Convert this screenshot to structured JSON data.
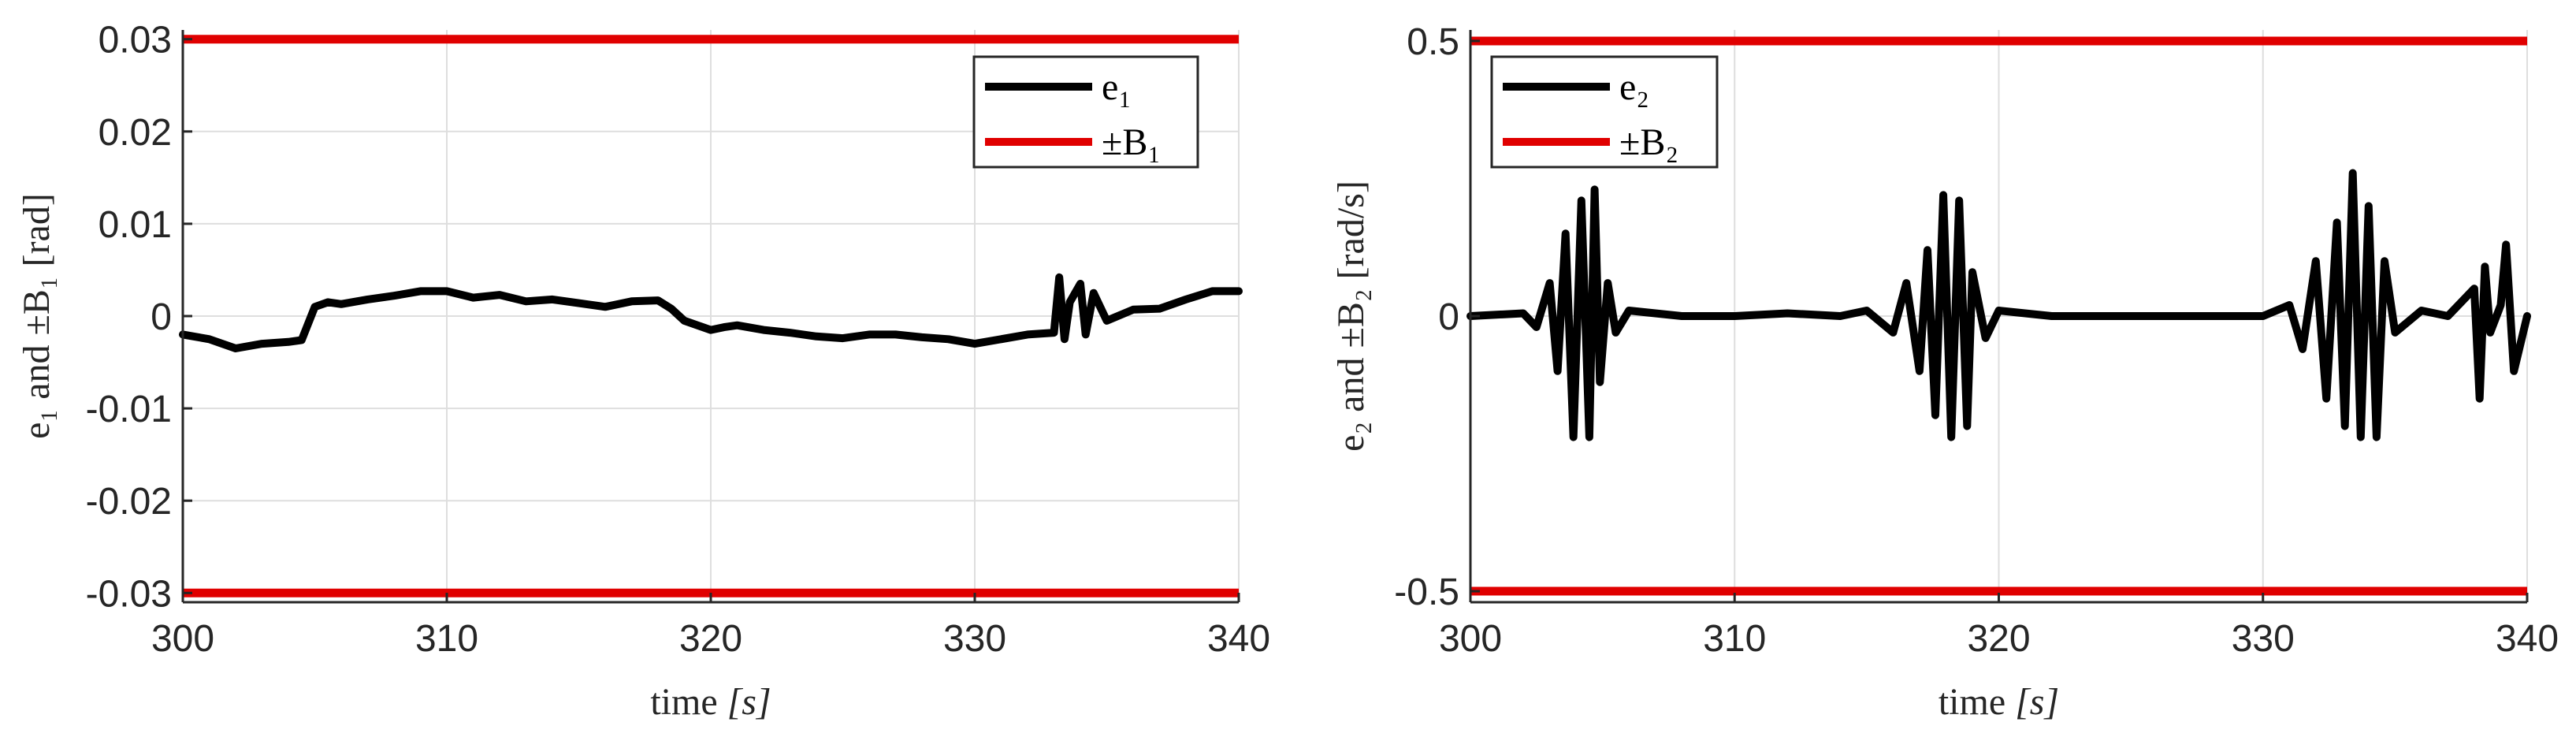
{
  "charts": [
    {
      "type": "line",
      "xlabel": {
        "prefix": "time ",
        "unit": "[s]"
      },
      "ylabel": "e₁ and ±B₁ [rad]",
      "xlim": [
        300,
        340
      ],
      "ylim": [
        -0.031,
        0.031
      ],
      "xticks": [
        300,
        310,
        320,
        330,
        340
      ],
      "xtick_labels": [
        "300",
        "310",
        "320",
        "330",
        "340"
      ],
      "yticks": [
        0.03,
        0.02,
        0.01,
        0,
        -0.01,
        -0.02,
        -0.03
      ],
      "ytick_labels": [
        "0.03",
        "0.02",
        "0.01",
        "0",
        "-0.01",
        "-0.02",
        "-0.03"
      ],
      "grid": true,
      "legend": {
        "position": "top-right",
        "entries": [
          {
            "series": "e",
            "label": "e₁"
          },
          {
            "series": "bound",
            "label": "±B₁"
          }
        ]
      },
      "series": [
        {
          "name": "e₁",
          "color": "#000000",
          "x": [
            300,
            301,
            302,
            303,
            304,
            304.5,
            305,
            305.5,
            306,
            307,
            308,
            309,
            310,
            311,
            312,
            313,
            314,
            315,
            316,
            317,
            318,
            318.5,
            319,
            320,
            320.5,
            321,
            322,
            323,
            324,
            325,
            326,
            327,
            328,
            329,
            330,
            331,
            332,
            333,
            333.2,
            333.4,
            333.6,
            334,
            334.2,
            334.5,
            335,
            336,
            337,
            338,
            339,
            340
          ],
          "y": [
            -0.002,
            -0.0025,
            -0.0035,
            -0.003,
            -0.0028,
            -0.0026,
            0.001,
            0.0015,
            0.0013,
            0.0018,
            0.0022,
            0.0027,
            0.0027,
            0.002,
            0.0023,
            0.0016,
            0.0018,
            0.0014,
            0.001,
            0.0016,
            0.0017,
            0.0008,
            -0.0005,
            -0.0015,
            -0.0012,
            -0.001,
            -0.0015,
            -0.0018,
            -0.0022,
            -0.0024,
            -0.002,
            -0.002,
            -0.0023,
            -0.0025,
            -0.003,
            -0.0025,
            -0.002,
            -0.0018,
            0.0042,
            -0.0025,
            0.0015,
            0.0035,
            -0.002,
            0.0025,
            -0.0005,
            0.0007,
            0.0008,
            0.0018,
            0.0027,
            0.0027
          ]
        },
        {
          "name": "+B₁",
          "color": "#e00000",
          "x": [
            300,
            340
          ],
          "y": [
            0.03,
            0.03
          ]
        },
        {
          "name": "-B₁",
          "color": "#e00000",
          "x": [
            300,
            340
          ],
          "y": [
            -0.03,
            -0.03
          ]
        }
      ]
    },
    {
      "type": "line",
      "xlabel": {
        "prefix": "time ",
        "unit": "[s]"
      },
      "ylabel": "e₂ and ±B₂ [rad/s]",
      "xlim": [
        300,
        340
      ],
      "ylim": [
        -0.52,
        0.52
      ],
      "xticks": [
        300,
        310,
        320,
        330,
        340
      ],
      "xtick_labels": [
        "300",
        "310",
        "320",
        "330",
        "340"
      ],
      "yticks": [
        0.5,
        0,
        -0.5
      ],
      "ytick_labels": [
        "0.5",
        "0",
        "-0.5"
      ],
      "grid": true,
      "legend": {
        "position": "top-left",
        "entries": [
          {
            "series": "e",
            "label": "e₂"
          },
          {
            "series": "bound",
            "label": "±B₂"
          }
        ]
      },
      "series": [
        {
          "name": "e₂",
          "color": "#000000",
          "x": [
            300,
            302,
            302.5,
            303,
            303.3,
            303.6,
            303.9,
            304.2,
            304.5,
            304.7,
            304.9,
            305.2,
            305.5,
            306,
            308,
            310,
            312,
            314,
            315,
            316,
            316.5,
            317,
            317.3,
            317.6,
            317.9,
            318.2,
            318.5,
            318.8,
            319,
            319.5,
            320,
            322,
            325,
            328,
            330,
            331,
            331.5,
            332,
            332.4,
            332.8,
            333.1,
            333.4,
            333.7,
            334,
            334.3,
            334.6,
            335,
            336,
            337,
            338,
            338.2,
            338.4,
            338.6,
            339,
            339.2,
            339.5,
            340
          ],
          "y": [
            0,
            0.005,
            -0.02,
            0.06,
            -0.1,
            0.15,
            -0.22,
            0.21,
            -0.22,
            0.23,
            -0.12,
            0.06,
            -0.03,
            0.01,
            0,
            0,
            0.005,
            0,
            0.01,
            -0.03,
            0.06,
            -0.1,
            0.12,
            -0.18,
            0.22,
            -0.22,
            0.21,
            -0.2,
            0.08,
            -0.04,
            0.01,
            0,
            0,
            0,
            0,
            0.02,
            -0.06,
            0.1,
            -0.15,
            0.17,
            -0.2,
            0.26,
            -0.22,
            0.2,
            -0.22,
            0.1,
            -0.03,
            0.01,
            0,
            0.05,
            -0.15,
            0.09,
            -0.03,
            0.02,
            0.13,
            -0.1,
            0
          ]
        },
        {
          "name": "+B₂",
          "color": "#e00000",
          "x": [
            300,
            340
          ],
          "y": [
            0.5,
            0.5
          ]
        },
        {
          "name": "-B₂",
          "color": "#e00000",
          "x": [
            300,
            340
          ],
          "y": [
            -0.5,
            -0.5
          ]
        }
      ]
    }
  ],
  "chart_data": [
    {
      "type": "line",
      "xlabel": "time [s]",
      "ylabel": "e₁ and ±B₁ [rad]",
      "xlim": [
        300,
        340
      ],
      "ylim": [
        -0.031,
        0.031
      ],
      "grid": true,
      "legend": [
        "e₁",
        "±B₁"
      ],
      "legend_position": "top-right",
      "series_names": [
        "e₁",
        "+B₁",
        "-B₁"
      ]
    },
    {
      "type": "line",
      "xlabel": "time [s]",
      "ylabel": "e₂ and ±B₂ [rad/s]",
      "xlim": [
        300,
        340
      ],
      "ylim": [
        -0.52,
        0.52
      ],
      "grid": true,
      "legend": [
        "e₂",
        "±B₂"
      ],
      "legend_position": "top-left",
      "series_names": [
        "e₂",
        "+B₂",
        "-B₂"
      ]
    }
  ]
}
